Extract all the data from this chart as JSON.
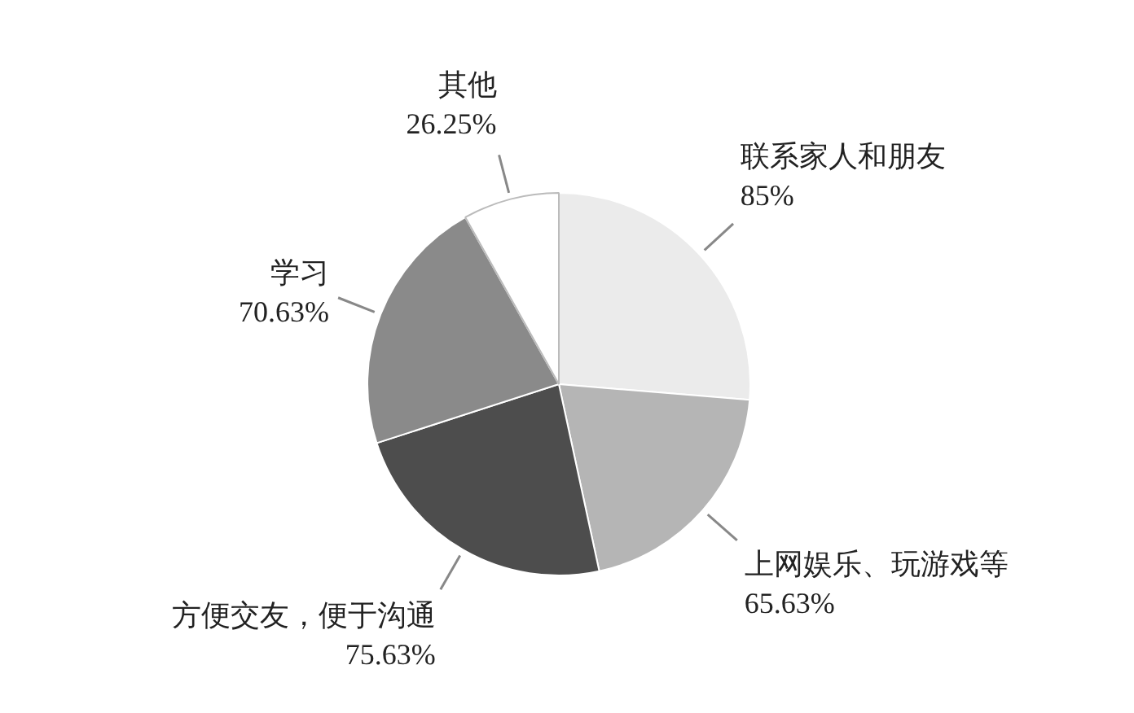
{
  "chart_data": {
    "type": "pie",
    "categories": [
      "联系家人和朋友",
      "上网娱乐、玩游戏等",
      "方便交友，便于沟通",
      "学习",
      "其他"
    ],
    "values": [
      85,
      65.63,
      75.63,
      70.63,
      26.25
    ],
    "value_labels": [
      "85%",
      "65.63%",
      "75.63%",
      "70.63%",
      "26.25%"
    ],
    "colors": [
      "#ebebeb",
      "#b5b5b5",
      "#4d4d4d",
      "#8a8a8a",
      "#ffffff"
    ],
    "legend": false
  }
}
